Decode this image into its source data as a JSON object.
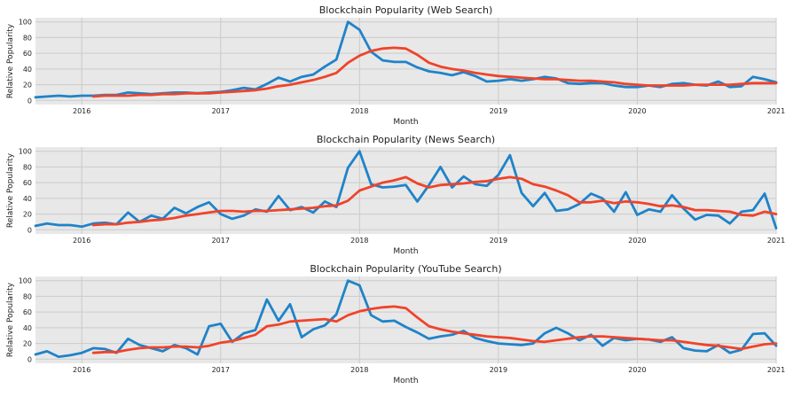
{
  "colors": {
    "raw": "#1f83c9",
    "smooth": "#f0432a",
    "panel": "#e8e8e8",
    "grid": "#cbcbcb",
    "text": "#222222"
  },
  "chart_data": [
    {
      "type": "line",
      "title": "Blockchain Popularity (Web Search)",
      "xlabel": "Month",
      "ylabel": "Relative Popularity",
      "xlim": [
        "2015-09",
        "2021-01"
      ],
      "ylim": [
        0,
        100
      ],
      "grid": true,
      "xticks": [
        "2016",
        "2017",
        "2018",
        "2019",
        "2020",
        "2021"
      ],
      "yticks": [
        "0",
        "20",
        "40",
        "60",
        "80",
        "100"
      ],
      "x": [
        "2015-09",
        "2015-10",
        "2015-11",
        "2015-12",
        "2016-01",
        "2016-02",
        "2016-03",
        "2016-04",
        "2016-05",
        "2016-06",
        "2016-07",
        "2016-08",
        "2016-09",
        "2016-10",
        "2016-11",
        "2016-12",
        "2017-01",
        "2017-02",
        "2017-03",
        "2017-04",
        "2017-05",
        "2017-06",
        "2017-07",
        "2017-08",
        "2017-09",
        "2017-10",
        "2017-11",
        "2017-12",
        "2018-01",
        "2018-02",
        "2018-03",
        "2018-04",
        "2018-05",
        "2018-06",
        "2018-07",
        "2018-08",
        "2018-09",
        "2018-10",
        "2018-11",
        "2018-12",
        "2019-01",
        "2019-02",
        "2019-03",
        "2019-04",
        "2019-05",
        "2019-06",
        "2019-07",
        "2019-08",
        "2019-09",
        "2019-10",
        "2019-11",
        "2019-12",
        "2020-01",
        "2020-02",
        "2020-03",
        "2020-04",
        "2020-05",
        "2020-06",
        "2020-07",
        "2020-08",
        "2020-09",
        "2020-10",
        "2020-11",
        "2020-12",
        "2021-01"
      ],
      "series": [
        {
          "values": [
            4,
            5,
            6,
            5,
            6,
            6,
            7,
            7,
            10,
            9,
            8,
            9,
            10,
            10,
            9,
            10,
            11,
            13,
            16,
            14,
            21,
            29,
            24,
            30,
            33,
            43,
            52,
            100,
            90,
            62,
            51,
            49,
            49,
            42,
            37,
            35,
            32,
            36,
            31,
            24,
            25,
            27,
            25,
            27,
            30,
            28,
            22,
            21,
            22,
            22,
            19,
            17,
            17,
            19,
            17,
            21,
            22,
            20,
            19,
            24,
            17,
            18,
            30,
            27,
            23
          ]
        },
        {
          "values": [
            null,
            null,
            null,
            null,
            null,
            5,
            6,
            6,
            6,
            7,
            7,
            8,
            8,
            9,
            9,
            9,
            10,
            11,
            12,
            13,
            15,
            18,
            20,
            23,
            26,
            30,
            35,
            48,
            57,
            63,
            66,
            67,
            66,
            58,
            48,
            43,
            40,
            38,
            35,
            33,
            31,
            30,
            29,
            28,
            27,
            27,
            26,
            25,
            25,
            24,
            23,
            21,
            20,
            19,
            19,
            19,
            19,
            20,
            20,
            20,
            20,
            21,
            22,
            22,
            22
          ]
        }
      ]
    },
    {
      "type": "line",
      "title": "Blockchain Popularity (News Search)",
      "xlabel": "Month",
      "ylabel": "Relative Popularity",
      "xlim": [
        "2015-09",
        "2021-01"
      ],
      "ylim": [
        0,
        100
      ],
      "grid": true,
      "xticks": [
        "2016",
        "2017",
        "2018",
        "2019",
        "2020",
        "2021"
      ],
      "yticks": [
        "0",
        "20",
        "40",
        "60",
        "80",
        "100"
      ],
      "x": [
        "2015-09",
        "2015-10",
        "2015-11",
        "2015-12",
        "2016-01",
        "2016-02",
        "2016-03",
        "2016-04",
        "2016-05",
        "2016-06",
        "2016-07",
        "2016-08",
        "2016-09",
        "2016-10",
        "2016-11",
        "2016-12",
        "2017-01",
        "2017-02",
        "2017-03",
        "2017-04",
        "2017-05",
        "2017-06",
        "2017-07",
        "2017-08",
        "2017-09",
        "2017-10",
        "2017-11",
        "2017-12",
        "2018-01",
        "2018-02",
        "2018-03",
        "2018-04",
        "2018-05",
        "2018-06",
        "2018-07",
        "2018-08",
        "2018-09",
        "2018-10",
        "2018-11",
        "2018-12",
        "2019-01",
        "2019-02",
        "2019-03",
        "2019-04",
        "2019-05",
        "2019-06",
        "2019-07",
        "2019-08",
        "2019-09",
        "2019-10",
        "2019-11",
        "2019-12",
        "2020-01",
        "2020-02",
        "2020-03",
        "2020-04",
        "2020-05",
        "2020-06",
        "2020-07",
        "2020-08",
        "2020-09",
        "2020-10",
        "2020-11",
        "2020-12",
        "2021-01"
      ],
      "series": [
        {
          "values": [
            5,
            8,
            6,
            6,
            4,
            8,
            9,
            7,
            22,
            10,
            18,
            14,
            28,
            21,
            29,
            35,
            20,
            14,
            18,
            26,
            23,
            43,
            25,
            29,
            22,
            36,
            29,
            79,
            100,
            58,
            54,
            55,
            57,
            36,
            57,
            80,
            54,
            68,
            58,
            56,
            70,
            95,
            47,
            30,
            47,
            24,
            26,
            33,
            46,
            40,
            23,
            48,
            19,
            26,
            23,
            44,
            27,
            13,
            19,
            18,
            8,
            23,
            25,
            46,
            2
          ]
        },
        {
          "values": [
            null,
            null,
            null,
            null,
            null,
            6,
            7,
            7,
            9,
            10,
            12,
            13,
            15,
            18,
            20,
            22,
            24,
            24,
            23,
            24,
            24,
            25,
            26,
            27,
            28,
            30,
            31,
            37,
            50,
            55,
            60,
            63,
            67,
            59,
            54,
            57,
            58,
            59,
            61,
            62,
            65,
            67,
            65,
            58,
            55,
            50,
            44,
            35,
            35,
            37,
            34,
            36,
            35,
            33,
            30,
            31,
            29,
            25,
            25,
            24,
            23,
            19,
            18,
            23,
            20
          ]
        }
      ]
    },
    {
      "type": "line",
      "title": "Blockchain Popularity (YouTube Search)",
      "xlabel": "Month",
      "ylabel": "Relative Popularity",
      "xlim": [
        "2015-09",
        "2021-01"
      ],
      "ylim": [
        0,
        100
      ],
      "grid": true,
      "xticks": [
        "2016",
        "2017",
        "2018",
        "2019",
        "2020",
        "2021"
      ],
      "yticks": [
        "0",
        "20",
        "40",
        "60",
        "80",
        "100"
      ],
      "x": [
        "2015-09",
        "2015-10",
        "2015-11",
        "2015-12",
        "2016-01",
        "2016-02",
        "2016-03",
        "2016-04",
        "2016-05",
        "2016-06",
        "2016-07",
        "2016-08",
        "2016-09",
        "2016-10",
        "2016-11",
        "2016-12",
        "2017-01",
        "2017-02",
        "2017-03",
        "2017-04",
        "2017-05",
        "2017-06",
        "2017-07",
        "2017-08",
        "2017-09",
        "2017-10",
        "2017-11",
        "2017-12",
        "2018-01",
        "2018-02",
        "2018-03",
        "2018-04",
        "2018-05",
        "2018-06",
        "2018-07",
        "2018-08",
        "2018-09",
        "2018-10",
        "2018-11",
        "2018-12",
        "2019-01",
        "2019-02",
        "2019-03",
        "2019-04",
        "2019-05",
        "2019-06",
        "2019-07",
        "2019-08",
        "2019-09",
        "2019-10",
        "2019-11",
        "2019-12",
        "2020-01",
        "2020-02",
        "2020-03",
        "2020-04",
        "2020-05",
        "2020-06",
        "2020-07",
        "2020-08",
        "2020-09",
        "2020-10",
        "2020-11",
        "2020-12",
        "2021-01"
      ],
      "series": [
        {
          "values": [
            6,
            10,
            3,
            5,
            8,
            14,
            13,
            8,
            26,
            18,
            14,
            10,
            18,
            14,
            6,
            42,
            45,
            22,
            33,
            37,
            76,
            49,
            70,
            28,
            38,
            43,
            57,
            100,
            94,
            56,
            48,
            49,
            41,
            34,
            26,
            29,
            31,
            36,
            27,
            23,
            20,
            19,
            18,
            20,
            33,
            40,
            33,
            24,
            31,
            17,
            27,
            24,
            26,
            25,
            22,
            28,
            14,
            11,
            10,
            18,
            8,
            12,
            32,
            33,
            17
          ]
        },
        {
          "values": [
            null,
            null,
            null,
            null,
            null,
            8,
            9,
            9,
            12,
            14,
            15,
            15,
            16,
            16,
            15,
            17,
            21,
            23,
            27,
            31,
            42,
            44,
            48,
            49,
            50,
            51,
            48,
            56,
            61,
            64,
            66,
            67,
            65,
            53,
            42,
            38,
            35,
            33,
            31,
            29,
            28,
            27,
            25,
            23,
            22,
            24,
            26,
            28,
            29,
            29,
            28,
            27,
            26,
            25,
            24,
            24,
            22,
            20,
            18,
            17,
            15,
            13,
            16,
            19,
            20
          ]
        }
      ]
    }
  ]
}
